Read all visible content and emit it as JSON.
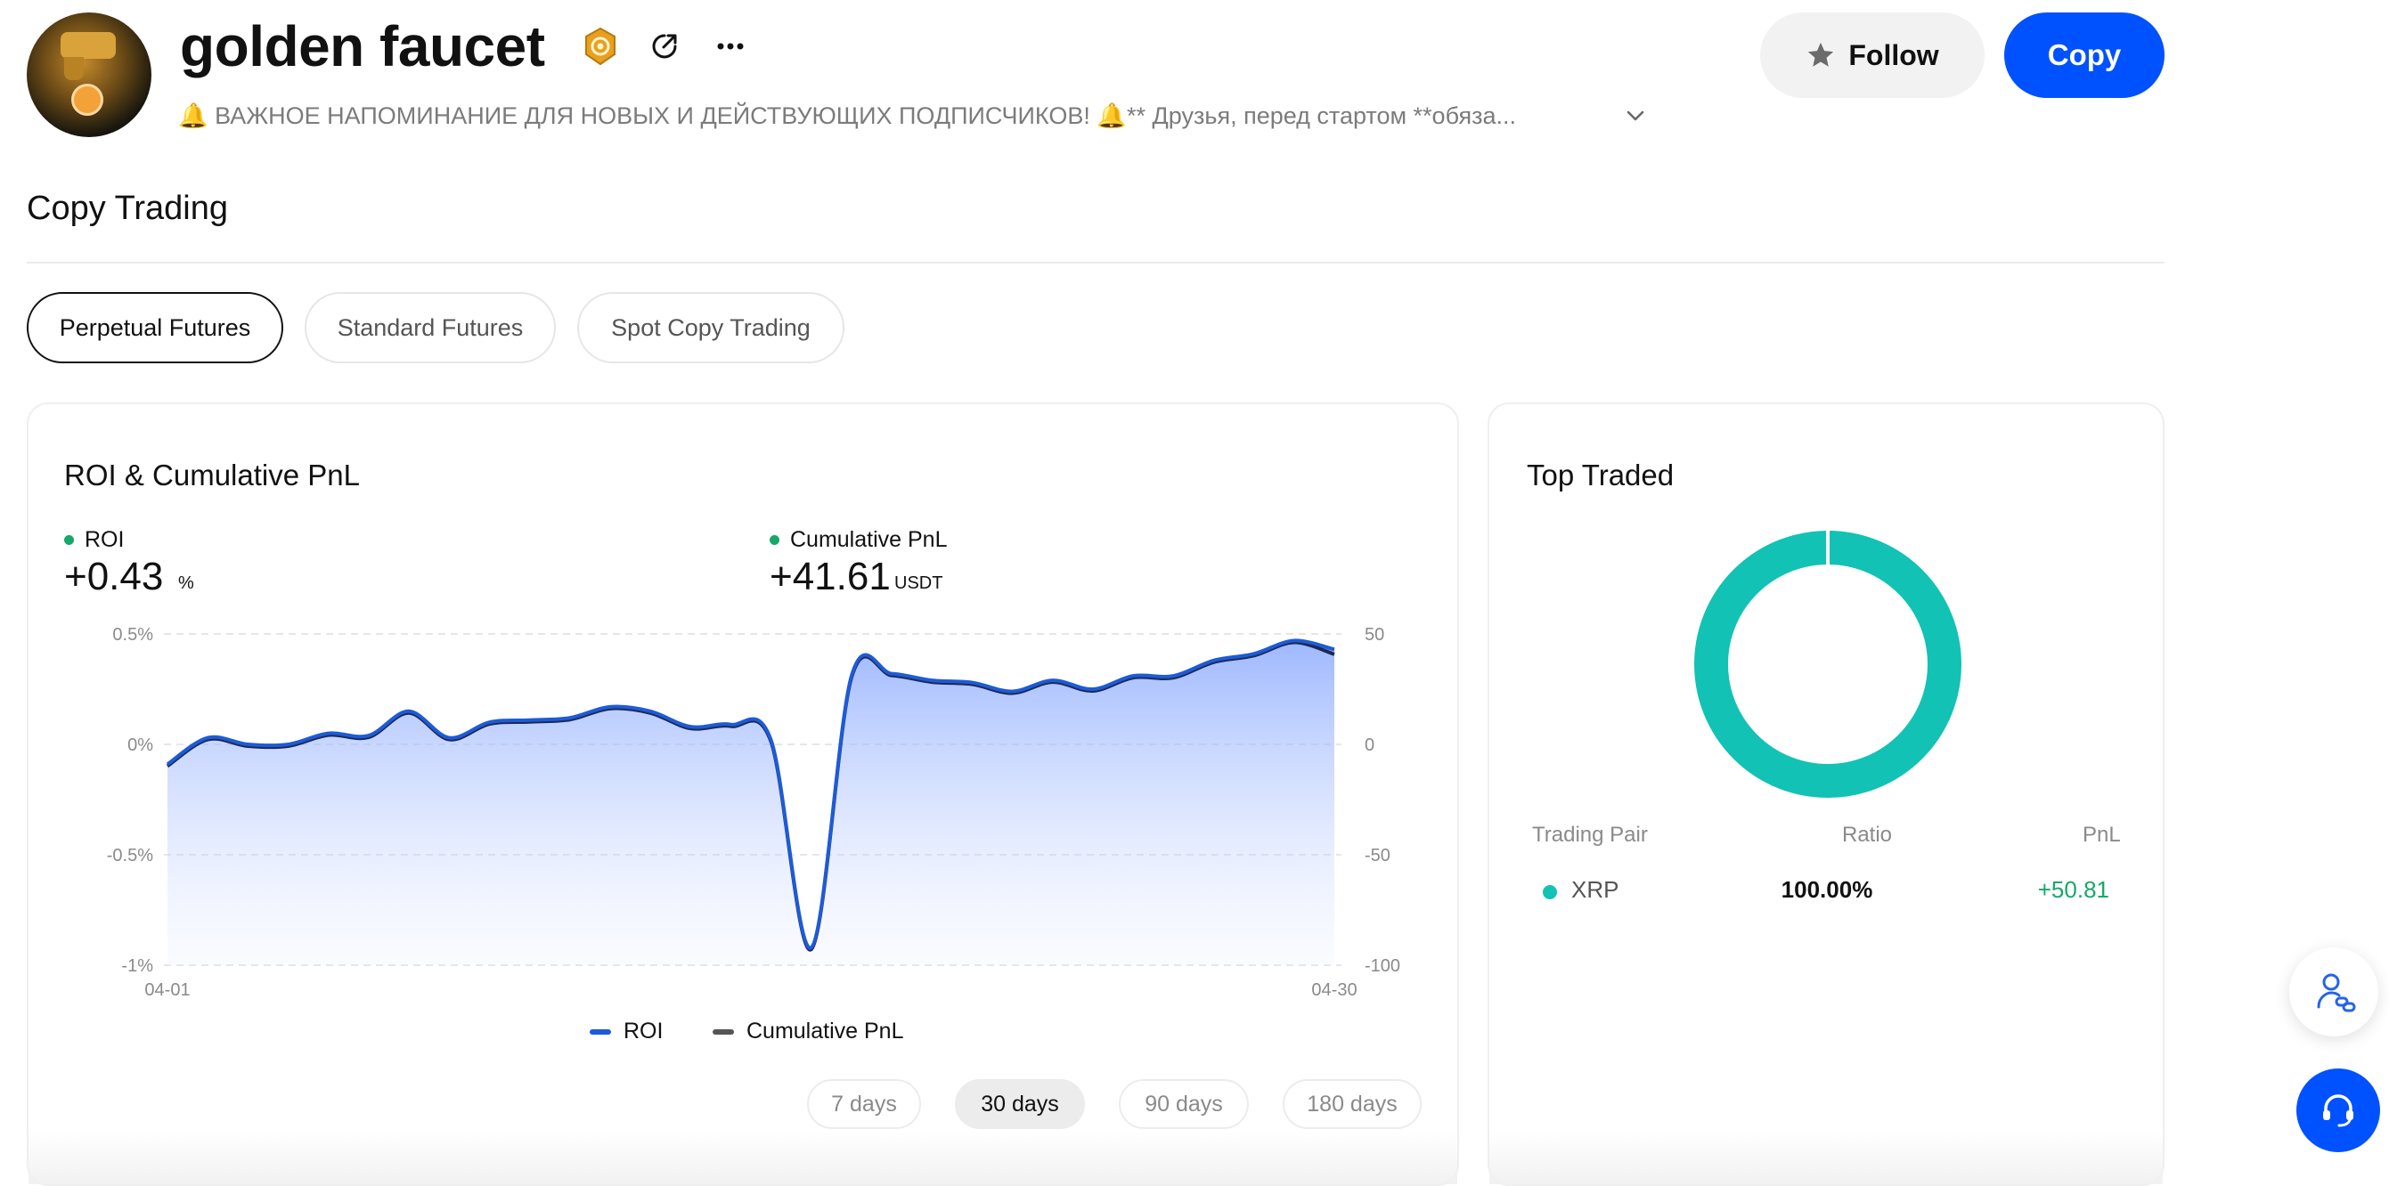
{
  "header": {
    "name": "golden faucet",
    "bio": "🔔 ВАЖНОЕ НАПОМИНАНИЕ ДЛЯ НОВЫХ И ДЕЙСТВУЮЩИХ ПОДПИСЧИКОВ! 🔔** Друзья, перед стартом **обяза...",
    "follow_label": "Follow",
    "copy_label": "Copy"
  },
  "section": {
    "title": "Copy Trading",
    "tabs": [
      {
        "label": "Perpetual Futures",
        "active": true
      },
      {
        "label": "Standard Futures",
        "active": false
      },
      {
        "label": "Spot Copy Trading",
        "active": false
      }
    ]
  },
  "roi_card": {
    "title": "ROI & Cumulative PnL",
    "roi_label": "ROI",
    "roi_value": "+0.43",
    "roi_unit": "%",
    "pnl_label": "Cumulative PnL",
    "pnl_value": "+41.61",
    "pnl_unit": "USDT",
    "legend": [
      {
        "label": "ROI",
        "color": "#1d5bd8"
      },
      {
        "label": "Cumulative PnL",
        "color": "#555555"
      }
    ],
    "ranges": [
      {
        "label": "7 days",
        "active": false
      },
      {
        "label": "30 days",
        "active": true
      },
      {
        "label": "90 days",
        "active": false
      },
      {
        "label": "180 days",
        "active": false
      }
    ]
  },
  "chart_data": {
    "type": "area",
    "x_start_label": "04-01",
    "x_end_label": "04-30",
    "left_axis_ticks": [
      "0.5%",
      "0%",
      "-0.5%",
      "-1%"
    ],
    "right_axis_ticks": [
      "50",
      "0",
      "-50",
      "-100"
    ],
    "ylim_left": [
      -1,
      0.5
    ],
    "ylim_right": [
      -100,
      50
    ],
    "grid": true,
    "series": [
      {
        "name": "ROI",
        "unit": "%",
        "values": [
          -0.09,
          0.03,
          0.0,
          0.0,
          0.05,
          0.04,
          0.15,
          0.03,
          0.1,
          0.11,
          0.12,
          0.17,
          0.15,
          0.08,
          0.09,
          0.02,
          -0.92,
          0.31,
          0.32,
          0.29,
          0.28,
          0.24,
          0.29,
          0.25,
          0.31,
          0.31,
          0.38,
          0.41,
          0.47,
          0.43
        ]
      },
      {
        "name": "Cumulative PnL",
        "unit": "USDT",
        "values": [
          -9,
          3,
          0,
          0,
          5,
          4,
          15,
          3,
          10,
          11,
          12,
          17,
          15,
          8,
          9,
          2,
          -92,
          31,
          32,
          29,
          28,
          24,
          29,
          25,
          31,
          31,
          38,
          41,
          47,
          41.61
        ]
      }
    ]
  },
  "top_traded": {
    "title": "Top Traded",
    "donut_color": "#12c2b4",
    "columns": [
      "Trading Pair",
      "Ratio",
      "PnL"
    ],
    "rows": [
      {
        "pair": "XRP",
        "ratio": "100.00%",
        "pnl": "+50.81",
        "ratio_fraction": 1.0
      }
    ]
  },
  "floating": {
    "contact_icon": "people-link-icon",
    "support_icon": "headset-icon"
  }
}
